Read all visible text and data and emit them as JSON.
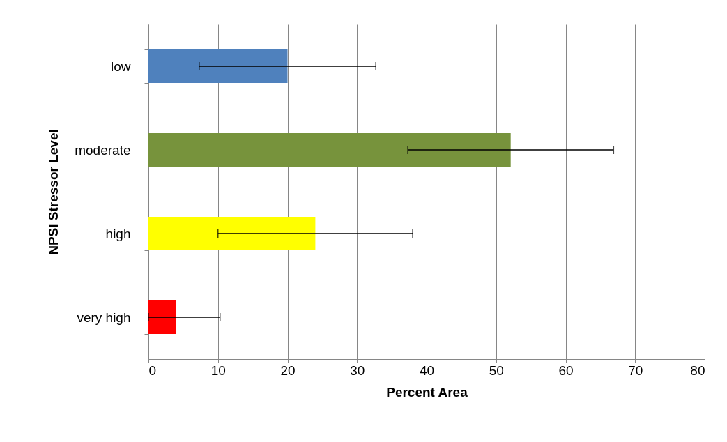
{
  "chart_data": {
    "type": "bar",
    "orientation": "horizontal",
    "xlabel": "Percent Area",
    "ylabel": "NPSI Stressor Level",
    "categories": [
      "low",
      "moderate",
      "high",
      "very high"
    ],
    "values": [
      20,
      52.1,
      24,
      4
    ],
    "colors": [
      "#4f81bd",
      "#77933c",
      "#ffff00",
      "#ff0000"
    ],
    "errors": [
      12.7,
      14.8,
      14,
      [
        0,
        10.3
      ]
    ],
    "xlim": [
      0,
      80
    ],
    "xticks": [
      0,
      10,
      20,
      30,
      40,
      50,
      60,
      70,
      80
    ],
    "grid": "x",
    "legend": false
  }
}
